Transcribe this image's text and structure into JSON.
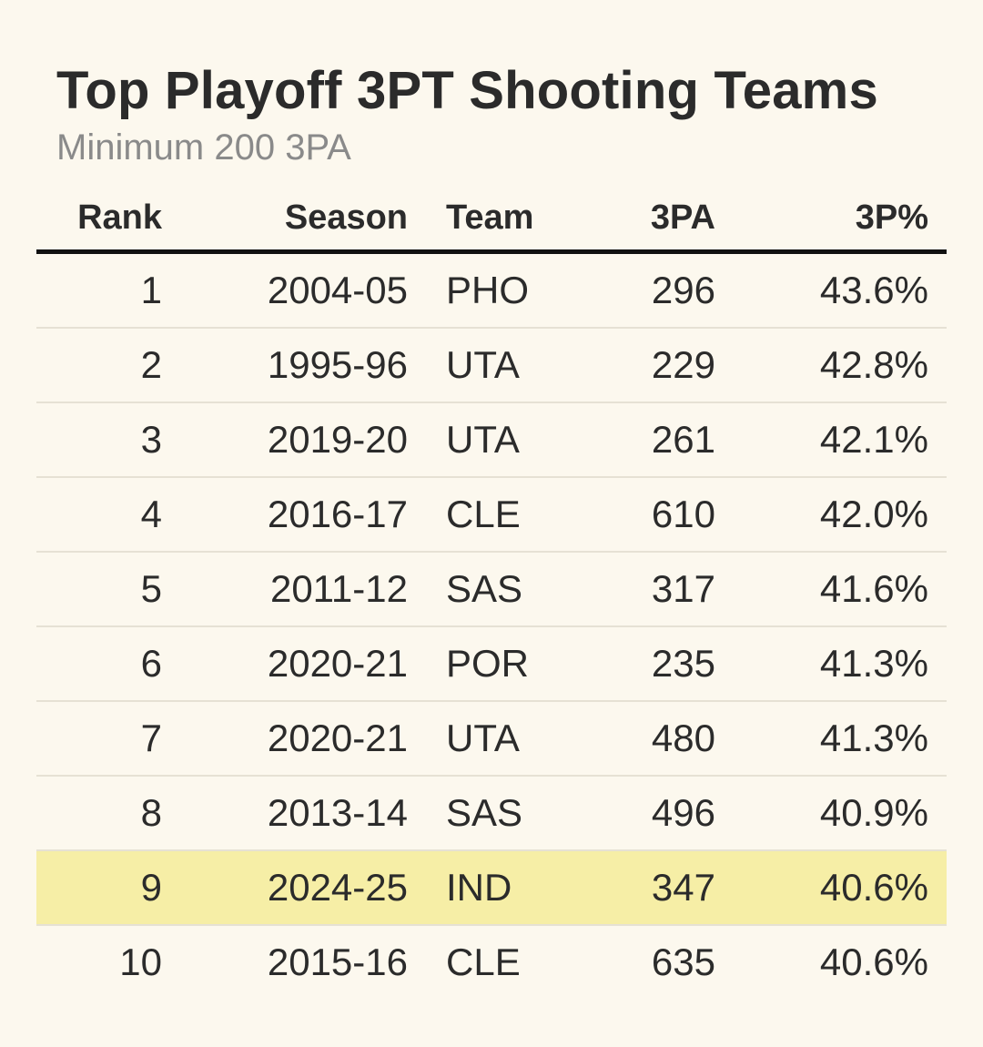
{
  "chart_data": {
    "type": "table",
    "title": "Top Playoff 3PT Shooting Teams",
    "subtitle": "Minimum 200 3PA",
    "columns": [
      "Rank",
      "Season",
      "Team",
      "3PA",
      "3P%"
    ],
    "rows": [
      {
        "rank": "1",
        "season": "2004-05",
        "team": "PHO",
        "attempts": "296",
        "pct": "43.6%"
      },
      {
        "rank": "2",
        "season": "1995-96",
        "team": "UTA",
        "attempts": "229",
        "pct": "42.8%"
      },
      {
        "rank": "3",
        "season": "2019-20",
        "team": "UTA",
        "attempts": "261",
        "pct": "42.1%"
      },
      {
        "rank": "4",
        "season": "2016-17",
        "team": "CLE",
        "attempts": "610",
        "pct": "42.0%"
      },
      {
        "rank": "5",
        "season": "2011-12",
        "team": "SAS",
        "attempts": "317",
        "pct": "41.6%"
      },
      {
        "rank": "6",
        "season": "2020-21",
        "team": "POR",
        "attempts": "235",
        "pct": "41.3%"
      },
      {
        "rank": "7",
        "season": "2020-21",
        "team": "UTA",
        "attempts": "480",
        "pct": "41.3%"
      },
      {
        "rank": "8",
        "season": "2013-14",
        "team": "SAS",
        "attempts": "496",
        "pct": "40.9%"
      },
      {
        "rank": "9",
        "season": "2024-25",
        "team": "IND",
        "attempts": "347",
        "pct": "40.6%"
      },
      {
        "rank": "10",
        "season": "2015-16",
        "team": "CLE",
        "attempts": "635",
        "pct": "40.6%"
      }
    ],
    "highlighted_rank": "9",
    "colors": {
      "background": "#fcf8ee",
      "highlight": "#f6eea6",
      "text": "#2b2b2b",
      "subtitle": "#8a8a8a",
      "header_rule": "#111111",
      "row_rule": "#e6e1d4"
    }
  }
}
